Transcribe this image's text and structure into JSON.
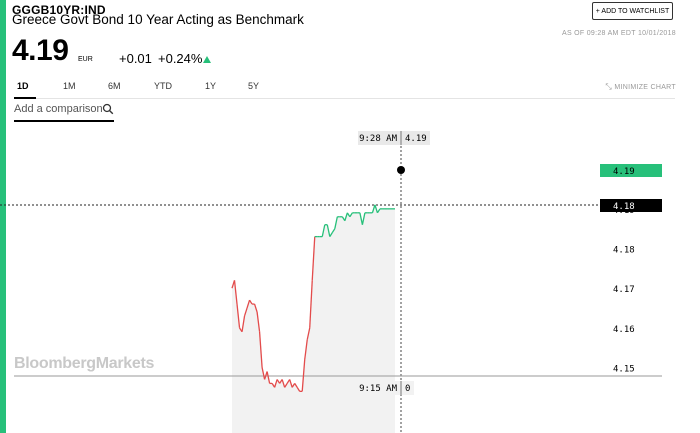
{
  "header": {
    "ticker": "GGGB10YR:IND",
    "name": "Greece Govt Bond 10 Year Acting as Benchmark",
    "price": "4.19",
    "currency": "EUR",
    "change": "+0.01",
    "change_pct": "+0.24%",
    "watchlist_label": "+ ADD TO WATCHLIST",
    "as_of": "AS OF 09:28 AM EDT 10/01/2018"
  },
  "tabs": [
    {
      "label": "1D",
      "active": true
    },
    {
      "label": "1M",
      "active": false
    },
    {
      "label": "6M",
      "active": false
    },
    {
      "label": "YTD",
      "active": false
    },
    {
      "label": "1Y",
      "active": false
    },
    {
      "label": "5Y",
      "active": false
    }
  ],
  "minimize_label": "MINIMIZE CHART",
  "compare_label": "Add a comparison",
  "logo": "BloombergMarkets",
  "colors": {
    "accent": "#27c07a",
    "down_line": "#e34b4b",
    "up_line": "#27c07a"
  },
  "chart_data": {
    "type": "line",
    "y_ticks": [
      "4.19",
      "4.18",
      "4.17",
      "4.16",
      "4.15"
    ],
    "y_tick_values": [
      4.19,
      4.18,
      4.17,
      4.16,
      4.15
    ],
    "ylim": [
      4.1335,
      4.2008
    ],
    "previous_close": 4.183,
    "current_value_label": "4.19",
    "previous_close_label": "4.18",
    "crosshair_time_label": "9:28 AM",
    "crosshair_value_label": "4.19",
    "bottom_time_label": "9:15 AM",
    "bottom_value_label": "0",
    "series": [
      {
        "x": [
          0,
          1,
          2,
          3,
          4,
          5,
          6,
          7,
          8,
          9,
          10,
          11,
          12,
          13,
          14,
          15,
          16,
          17,
          18,
          19,
          20,
          21,
          22,
          23,
          24,
          25,
          26,
          27,
          28,
          29,
          30,
          31,
          32,
          33,
          34,
          35,
          36,
          37,
          38,
          39,
          40,
          41,
          42,
          43,
          44,
          45,
          46,
          47,
          48,
          49,
          50,
          51,
          52,
          53,
          54,
          55,
          56,
          57,
          58,
          59,
          60,
          61,
          62,
          63,
          64,
          65
        ],
        "y": [
          4.17,
          4.172,
          4.166,
          4.16,
          4.159,
          4.163,
          4.165,
          4.167,
          4.166,
          4.166,
          4.164,
          4.159,
          4.15,
          4.147,
          4.149,
          4.146,
          4.146,
          4.145,
          4.147,
          4.146,
          4.147,
          4.145,
          4.146,
          4.147,
          4.145,
          4.146,
          4.145,
          4.144,
          4.144,
          4.152,
          4.157,
          4.16,
          4.172,
          4.183,
          4.183,
          4.183,
          4.183,
          4.186,
          4.186,
          4.183,
          4.184,
          4.185,
          4.188,
          4.188,
          4.188,
          4.187,
          4.189,
          4.188,
          4.189,
          4.189,
          4.189,
          4.189,
          4.186,
          4.189,
          4.189,
          4.189,
          4.189,
          4.191,
          4.189,
          4.19,
          4.19,
          4.19,
          4.19,
          4.19,
          4.19,
          4.19
        ]
      }
    ]
  }
}
